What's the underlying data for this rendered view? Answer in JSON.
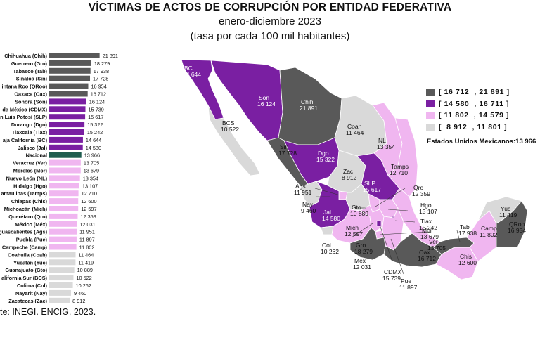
{
  "header": {
    "title": "VÍCTIMAS DE ACTOS DE CORRUPCIÓN POR ENTIDAD FEDERATIVA",
    "period": "enero-diciembre 2023",
    "unit": "(tasa por cada 100 mil habitantes)"
  },
  "legend": {
    "items": [
      {
        "label": "[ 16 712  , 21 891 ]",
        "color": "#595959"
      },
      {
        "label": "[ 14 580  , 16 711 ]",
        "color": "#7a1fa2"
      },
      {
        "label": "[ 11 802  , 14 579 ]",
        "color": "#f0b6f0"
      },
      {
        "label": "[  8 912  , 11 801 ]",
        "color": "#d9d9d9"
      }
    ],
    "national": "Estados Unidos Mexicanos:13 966"
  },
  "source": "te: INEGI. ENCIG, 2023.",
  "chart_data": {
    "type": "bar",
    "orientation": "horizontal",
    "categories": [
      "Chihuahua (Chih)",
      "Guerrero (Gro)",
      "Tabasco (Tab)",
      "Sinaloa (Sin)",
      "intana Roo (QRoo)",
      "Oaxaca (Oax)",
      "Sonora (Son)",
      "de México (CDMX)",
      "an Luis Potosí (SLP)",
      "Durango (Dgo)",
      "Tlaxcala (Tlax)",
      "aja California (BC)",
      "Jalisco (Jal)",
      "Nacional",
      "Veracruz (Ver)",
      "Morelos (Mor)",
      "Nuevo León (NL)",
      "Hidalgo (Hgo)",
      "amaulipas (Tamps)",
      "Chiapas (Chis)",
      "Michoacán (Mich)",
      "Querétaro (Qro)",
      "México (Méx)",
      "guascalientes (Ags)",
      "Puebla (Pue)",
      "Campeche (Camp)",
      "Coahuila (Coah)",
      "Yucatán (Yuc)",
      "Guanajuato (Gto)",
      "alifornia Sur (BCS)",
      "Colima (Col)",
      "Nayarit (Nay)",
      "Zacatecas (Zac)"
    ],
    "values": [
      21891,
      18279,
      17938,
      17728,
      16954,
      16712,
      16124,
      15739,
      15617,
      15322,
      15242,
      14644,
      14580,
      13966,
      13705,
      13679,
      13354,
      13107,
      12710,
      12600,
      12597,
      12359,
      12031,
      11951,
      11897,
      11802,
      11464,
      11419,
      10889,
      10522,
      10262,
      9460,
      8912
    ],
    "value_labels": [
      "21 891",
      "18 279",
      "17 938",
      "17 728",
      "16 954",
      "16 712",
      "16 124",
      "15 739",
      "15 617",
      "15 322",
      "15 242",
      "14 644",
      "14 580",
      "13 966",
      "13 705",
      "13 679",
      "13 354",
      "13 107",
      "12 710",
      "12 600",
      "12 597",
      "12 359",
      "12 031",
      "11 951",
      "11 897",
      "11 802",
      "11 464",
      "11 419",
      "10 889",
      "10 522",
      "10 262",
      "9 460",
      "8 912"
    ],
    "bar_colors": [
      "#595959",
      "#595959",
      "#595959",
      "#595959",
      "#595959",
      "#595959",
      "#7a1fa2",
      "#7a1fa2",
      "#7a1fa2",
      "#7a1fa2",
      "#7a1fa2",
      "#7a1fa2",
      "#7a1fa2",
      "#1f5c4f",
      "#f0b6f0",
      "#f0b6f0",
      "#f0b6f0",
      "#f0b6f0",
      "#f0b6f0",
      "#f0b6f0",
      "#f0b6f0",
      "#f0b6f0",
      "#f0b6f0",
      "#f0b6f0",
      "#f0b6f0",
      "#f0b6f0",
      "#d9d9d9",
      "#d9d9d9",
      "#d9d9d9",
      "#d9d9d9",
      "#d9d9d9",
      "#d9d9d9",
      "#d9d9d9"
    ],
    "xlim": [
      0,
      22000
    ]
  },
  "map_labels": [
    {
      "abbr": "BC",
      "value": "14 644"
    },
    {
      "abbr": "Son",
      "value": "16 124"
    },
    {
      "abbr": "Chih",
      "value": "21 891"
    },
    {
      "abbr": "Coah",
      "value": "11 464"
    },
    {
      "abbr": "BCS",
      "value": "10 522"
    },
    {
      "abbr": "Sin",
      "value": "17 728"
    },
    {
      "abbr": "Dgo",
      "value": "15 322"
    },
    {
      "abbr": "NL",
      "value": "13 354"
    },
    {
      "abbr": "Tamps",
      "value": "12 710"
    },
    {
      "abbr": "Zac",
      "value": "8 912"
    },
    {
      "abbr": "Ags",
      "value": "11 951"
    },
    {
      "abbr": "SLP",
      "value": "15 617"
    },
    {
      "abbr": "Nay",
      "value": "9 460"
    },
    {
      "abbr": "Gto",
      "value": "10 889"
    },
    {
      "abbr": "Qro",
      "value": "12 359"
    },
    {
      "abbr": "Hgo",
      "value": "13 107"
    },
    {
      "abbr": "Jal",
      "value": "14 580"
    },
    {
      "abbr": "Tlax",
      "value": "15 242"
    },
    {
      "abbr": "Mor",
      "value": "13 679"
    },
    {
      "abbr": "Mich",
      "value": "12 597"
    },
    {
      "abbr": "Col",
      "value": "10 262"
    },
    {
      "abbr": "Gro",
      "value": "18 279"
    },
    {
      "abbr": "Méx",
      "value": "12 031"
    },
    {
      "abbr": "CDMX",
      "value": "15 739"
    },
    {
      "abbr": "Pue",
      "value": "11 897"
    },
    {
      "abbr": "Ver",
      "value": "13 705"
    },
    {
      "abbr": "Oax",
      "value": "16 712"
    },
    {
      "abbr": "Tab",
      "value": "17 938"
    },
    {
      "abbr": "Chis",
      "value": "12 600"
    },
    {
      "abbr": "Camp",
      "value": "11 802"
    },
    {
      "abbr": "Yuc",
      "value": "11 419"
    },
    {
      "abbr": "QRoo",
      "value": "16 954"
    }
  ]
}
